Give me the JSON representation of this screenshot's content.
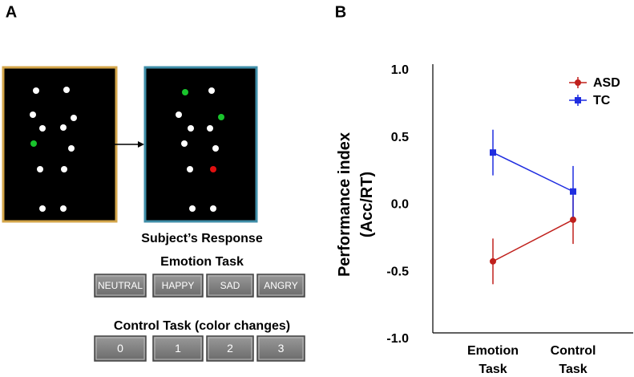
{
  "panel_a": {
    "label": "A",
    "response_title": "Subject’s Response",
    "emotion_title": "Emotion Task",
    "emotion_buttons": [
      "NEUTRAL",
      "HAPPY",
      "SAD",
      "ANGRY"
    ],
    "control_title": "Control Task (color changes)",
    "control_buttons": [
      "0",
      "1",
      "2",
      "3"
    ]
  },
  "chart_data": {
    "type": "line",
    "label": "B",
    "y_label": [
      "Performance index",
      "(Acc/RT)"
    ],
    "categories": [
      "Emotion Task",
      "Control Task"
    ],
    "ylim": [
      -1,
      1
    ],
    "yticks": [
      {
        "value": 1,
        "label": "1.0"
      },
      0.5,
      {
        "value": 0,
        "label": "0.0"
      },
      -0.5,
      {
        "value": -1,
        "label": "-1.0"
      }
    ],
    "legend": "upper right",
    "series": [
      {
        "name": "ASD",
        "color": "#c0201c",
        "marker": "circle",
        "values": [
          -0.42,
          -0.11
        ],
        "errors": [
          0.17,
          0.18
        ]
      },
      {
        "name": "TC",
        "color": "#1f2de0",
        "marker": "square",
        "values": [
          0.39,
          0.1
        ],
        "errors": [
          0.17,
          0.19
        ]
      }
    ]
  }
}
